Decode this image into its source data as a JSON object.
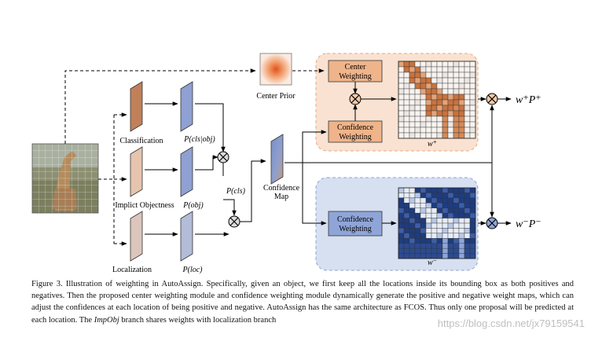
{
  "diagram": {
    "center_prior_label": "Center Prior",
    "branches": {
      "classification": "Classification",
      "implicit_objectness": "Implict Objectness",
      "localization": "Localization"
    },
    "probabilities": {
      "p_cls_obj": "P(cls|obj)",
      "p_obj": "P(obj)",
      "p_loc": "P(loc)",
      "p_cls": "P(cls)"
    },
    "confidence_map": {
      "line1": "Confidence",
      "line2": "Map"
    },
    "positive_module": {
      "center_weighting": {
        "line1": "Center",
        "line2": "Weighting"
      },
      "confidence_weighting": {
        "line1": "Confidence",
        "line2": "Weighting"
      },
      "weight_label": "w⁺",
      "output": "w⁺P⁺"
    },
    "negative_module": {
      "confidence_weighting": {
        "line1": "Confidence",
        "line2": "Weighting"
      },
      "weight_label": "w⁻",
      "output": "w⁻P⁻"
    }
  },
  "caption": {
    "part1": "Figure 3. Illustration of weighting in AutoAssign.  Specifically, given an object, we first keep all the locations inside its bounding box as both positives and negatives. Then the proposed center weighting module and confidence weighting module dynamically generate the positive and negative weight maps, which can adjust the confidences at each location of being positive and negative.  AutoAssign has the same architecture as FCOS. Thus only one proposal will be predicted at each location. The ",
    "emph": "ImpObj",
    "part2": " branch shares weights with localization branch"
  },
  "watermark": "https://blog.csdn.net/jx79159541",
  "colors": {
    "positive_panel": "#f9e2d1",
    "positive_box": "#f0b48a",
    "negative_panel": "#d7e0f1",
    "negative_box": "#9fb3dc",
    "classification_feature": "#c0805a",
    "objectness_feature": "#e7c4ae",
    "localization_feature": "#dcc6bb",
    "probability_feature": "#8fa0d2"
  }
}
